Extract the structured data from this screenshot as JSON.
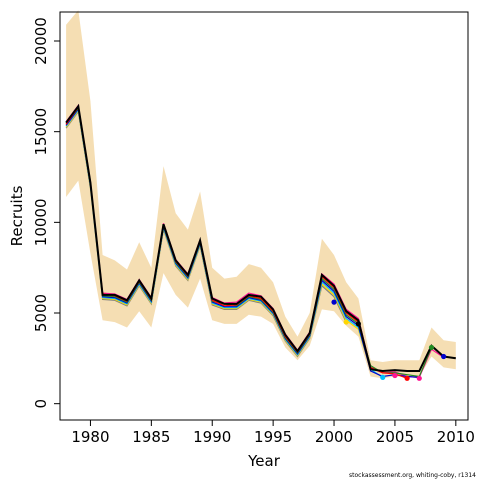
{
  "chart_data": {
    "type": "line",
    "xlabel": "Year",
    "ylabel": "Recruits",
    "xlim": [
      1977.5,
      2011
    ],
    "ylim": [
      -900,
      21600
    ],
    "xticks": [
      1980,
      1985,
      1990,
      1995,
      2000,
      2005,
      2010
    ],
    "yticks": [
      0,
      5000,
      10000,
      15000,
      20000
    ],
    "credit": "stockassessment.org, whiting-coby, r1314",
    "x": [
      1978,
      1979,
      1980,
      1981,
      1982,
      1983,
      1984,
      1985,
      1986,
      1987,
      1988,
      1989,
      1990,
      1991,
      1992,
      1993,
      1994,
      1995,
      1996,
      1997,
      1998,
      1999,
      2000,
      2001,
      2002,
      2003,
      2004,
      2005,
      2006,
      2007,
      2008,
      2009,
      2010
    ],
    "band_upper": [
      20900,
      21700,
      16700,
      8200,
      7900,
      7400,
      8900,
      7500,
      13100,
      10500,
      9600,
      11700,
      7500,
      6900,
      7000,
      7700,
      7500,
      6700,
      4800,
      3700,
      5000,
      9100,
      8200,
      6700,
      5800,
      2400,
      2300,
      2400,
      2400,
      2400,
      4200,
      3500,
      3400
    ],
    "band_lower": [
      11400,
      12300,
      8300,
      4600,
      4500,
      4200,
      5100,
      4200,
      7200,
      6000,
      5300,
      6900,
      4600,
      4400,
      4400,
      4900,
      4800,
      4400,
      3100,
      2400,
      3200,
      5200,
      5100,
      4300,
      3700,
      1500,
      1400,
      1500,
      1500,
      1500,
      2600,
      2000,
      1900
    ],
    "series": [
      {
        "color": "#000000",
        "values": [
          15500,
          16400,
          12200,
          6000,
          6000,
          5700,
          6800,
          5800,
          9900,
          7900,
          7100,
          9000,
          5800,
          5500,
          5500,
          6000,
          5900,
          5200,
          3800,
          2900,
          3900,
          7100,
          6500,
          5100,
          4600,
          1900,
          1800,
          1850,
          1800,
          1800,
          3200,
          2600,
          2500
        ]
      },
      {
        "color": "#ff0000",
        "values": [
          15400,
          16350,
          12150,
          6050,
          5950,
          5650,
          6750,
          5750,
          9850,
          7850,
          7050,
          8950,
          5700,
          5400,
          5450,
          5950,
          5800,
          5100,
          3700,
          2850,
          3850,
          7000,
          6400,
          5000,
          4500,
          2000,
          1700,
          1650,
          1400,
          null,
          null,
          null,
          null
        ]
      },
      {
        "color": "#228b22",
        "values": [
          15450,
          16300,
          12100,
          5950,
          5900,
          5600,
          6700,
          5700,
          9800,
          7800,
          7000,
          8900,
          5650,
          5500,
          5400,
          5900,
          5750,
          5050,
          3650,
          2800,
          3800,
          6900,
          6300,
          4900,
          4400,
          2100,
          1700,
          1700,
          1600,
          1500,
          3100,
          null,
          null
        ]
      },
      {
        "color": "#0000cd",
        "values": [
          15350,
          16250,
          12050,
          5900,
          5850,
          5550,
          6650,
          5650,
          9750,
          7750,
          6950,
          8850,
          5600,
          5350,
          5350,
          5850,
          5700,
          5000,
          3600,
          2750,
          3750,
          6800,
          6200,
          4800,
          4300,
          1800,
          1500,
          1600,
          1500,
          1450,
          null,
          2600,
          null
        ]
      },
      {
        "color": "#00bfff",
        "values": [
          15300,
          16200,
          12000,
          5850,
          5800,
          5500,
          6600,
          5600,
          9700,
          7700,
          6900,
          8800,
          5550,
          5300,
          5300,
          5800,
          5650,
          4950,
          3550,
          2700,
          3700,
          6700,
          6100,
          4700,
          4200,
          1900,
          1450,
          null,
          null,
          null,
          null,
          null,
          null
        ]
      },
      {
        "color": "#ff1493",
        "values": [
          15550,
          16450,
          12250,
          6100,
          6050,
          5750,
          6850,
          5850,
          9950,
          7950,
          7150,
          9050,
          5850,
          5550,
          5600,
          6100,
          5950,
          5250,
          3850,
          2950,
          3950,
          7150,
          6600,
          5200,
          4700,
          2000,
          1700,
          1750,
          1500,
          1450,
          3000,
          2550,
          null
        ]
      },
      {
        "color": "#ffd700",
        "values": [
          15250,
          16150,
          11950,
          5800,
          5750,
          5450,
          6550,
          5550,
          9650,
          7650,
          6850,
          8750,
          5500,
          5250,
          5250,
          5750,
          5600,
          4900,
          3500,
          2650,
          3650,
          6600,
          6000,
          4600,
          4100,
          1850,
          null,
          null,
          null,
          null,
          null,
          null,
          null
        ]
      },
      {
        "color": "#808080",
        "values": [
          15200,
          16100,
          11900,
          5750,
          5700,
          5400,
          6500,
          5500,
          9600,
          7600,
          6800,
          8700,
          5450,
          5200,
          5200,
          5700,
          5550,
          4850,
          3450,
          2600,
          3600,
          6500,
          5900,
          4500,
          null,
          null,
          null,
          null,
          null,
          null,
          null,
          null,
          null
        ]
      }
    ],
    "end_points": [
      {
        "x": 2000,
        "y": 5600,
        "color": "#0000cd"
      },
      {
        "x": 2001,
        "y": 4500,
        "color": "#ffd700"
      },
      {
        "x": 2002,
        "y": 4400,
        "color": "#000000"
      },
      {
        "x": 2004,
        "y": 1450,
        "color": "#00bfff"
      },
      {
        "x": 2005,
        "y": 1550,
        "color": "#ff1493"
      },
      {
        "x": 2006,
        "y": 1400,
        "color": "#ff0000"
      },
      {
        "x": 2007,
        "y": 1400,
        "color": "#ff1493"
      },
      {
        "x": 2008,
        "y": 3100,
        "color": "#228b22"
      },
      {
        "x": 2009,
        "y": 2600,
        "color": "#0000cd"
      }
    ],
    "band_color": "#f5deb3"
  }
}
